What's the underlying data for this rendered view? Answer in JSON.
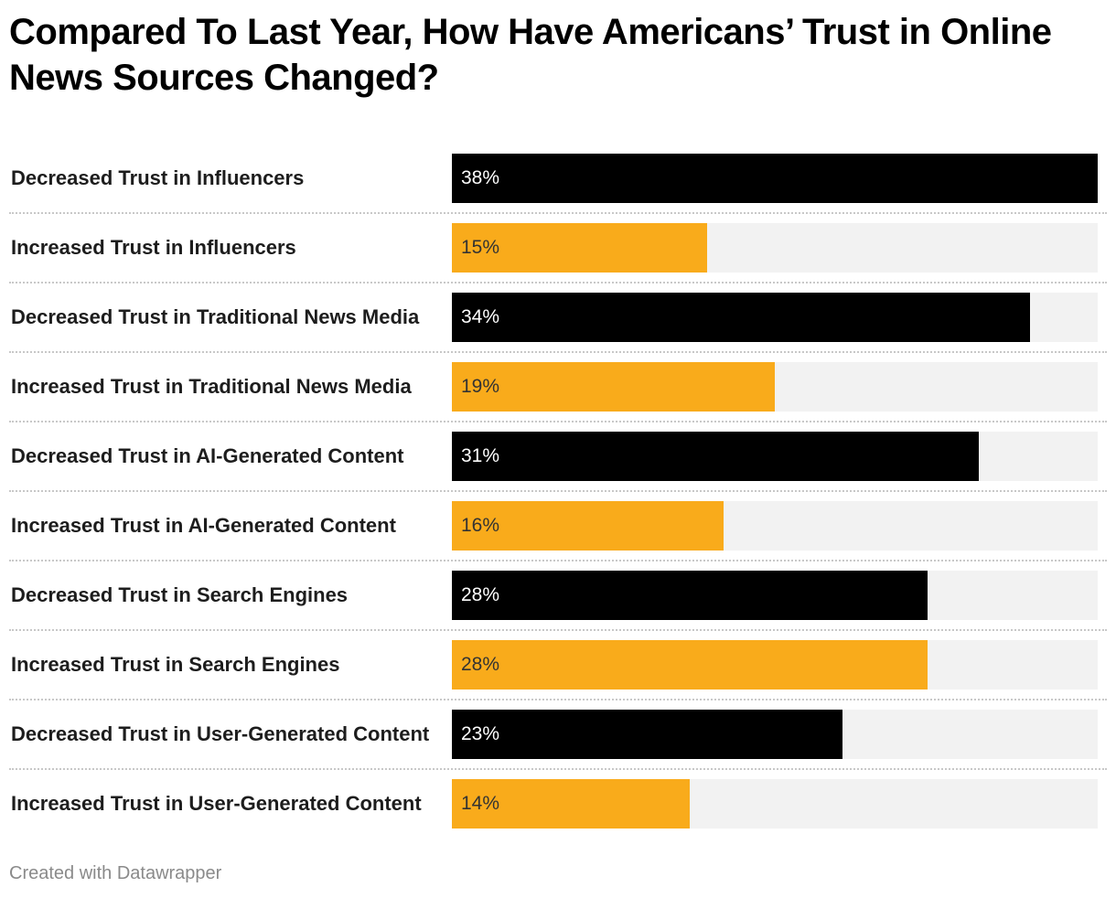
{
  "title": "Compared To Last Year, How Have Americans’ Trust in Online News Sources Changed?",
  "footer": "Created with Datawrapper",
  "colors": {
    "decreased": "#000000",
    "increased": "#f9ab1b",
    "track": "#f2f2f2",
    "decreased_label": "#ffffff",
    "increased_label": "#333333"
  },
  "chart_data": {
    "type": "bar",
    "orientation": "horizontal",
    "title": "Compared To Last Year, How Have Americans’ Trust in Online News Sources Changed?",
    "xlim": [
      0,
      38
    ],
    "grid": false,
    "categories": [
      "Decreased Trust in Influencers",
      "Increased Trust in Influencers",
      "Decreased Trust in Traditional News Media",
      "Increased Trust in Traditional News Media",
      "Decreased Trust in AI-Generated Content",
      "Increased Trust in AI-Generated Content",
      "Decreased Trust in Search Engines",
      "Increased Trust in Search Engines",
      "Decreased Trust in User-Generated Content",
      "Increased Trust in User-Generated Content"
    ],
    "values": [
      38,
      15,
      34,
      19,
      31,
      16,
      28,
      28,
      23,
      14
    ],
    "value_labels": [
      "38%",
      "15%",
      "34%",
      "19%",
      "31%",
      "16%",
      "28%",
      "28%",
      "23%",
      "14%"
    ],
    "bar_groups": [
      "decreased",
      "increased",
      "decreased",
      "increased",
      "decreased",
      "increased",
      "decreased",
      "increased",
      "decreased",
      "increased"
    ]
  }
}
